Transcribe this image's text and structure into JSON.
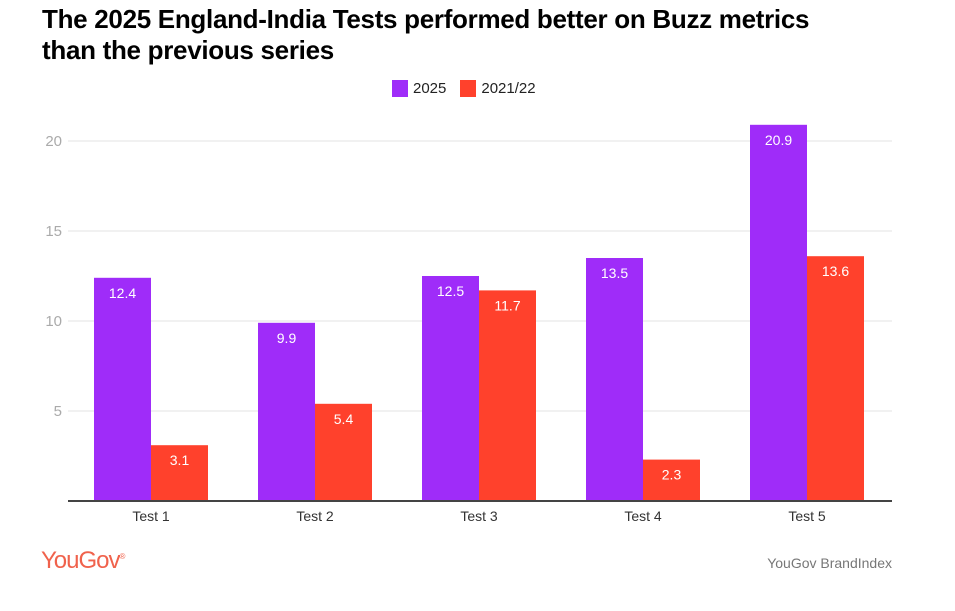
{
  "chart_data": {
    "type": "bar",
    "title": "The 2025 England-India Tests performed better on Buzz metrics than the previous series",
    "categories": [
      "Test 1",
      "Test 2",
      "Test 3",
      "Test 4",
      "Test 5"
    ],
    "series": [
      {
        "name": "2025",
        "color": "#9f2cf9",
        "values": [
          12.4,
          9.9,
          12.5,
          13.5,
          20.9
        ]
      },
      {
        "name": "2021/22",
        "color": "#ff412c",
        "values": [
          3.1,
          5.4,
          11.7,
          2.3,
          13.6
        ]
      }
    ],
    "yticks": [
      5,
      10,
      15,
      20
    ],
    "ylim": [
      0,
      20
    ],
    "grid": true,
    "legend": "top-center",
    "xlabel": "",
    "ylabel": ""
  },
  "footer": {
    "logo": "YouGov",
    "source": "YouGov BrandIndex"
  }
}
